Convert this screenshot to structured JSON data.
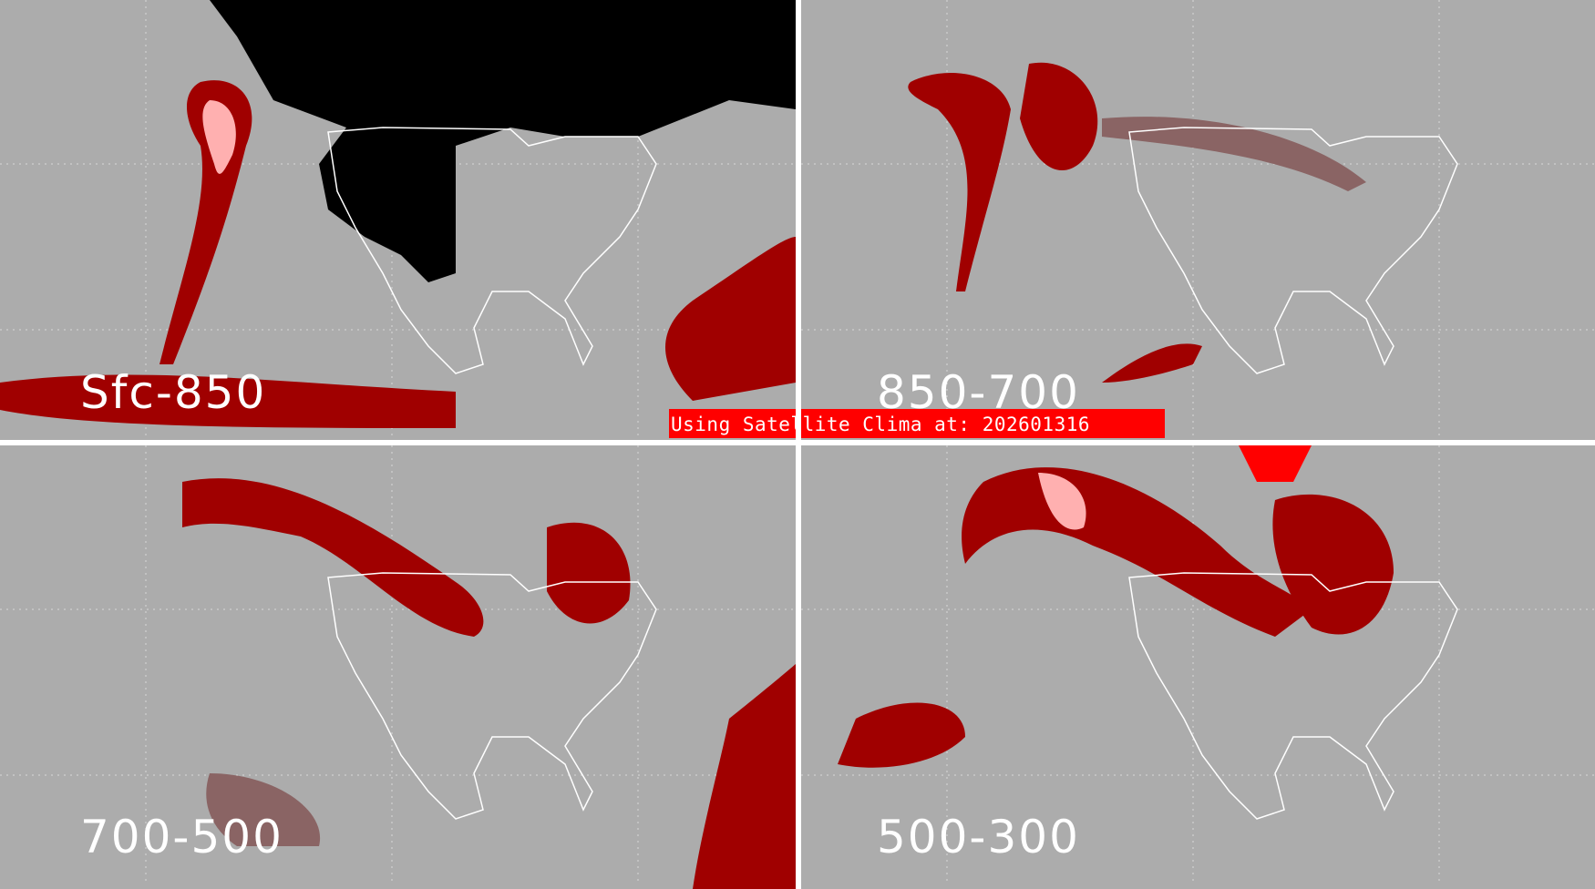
{
  "panels": [
    {
      "id": "tl",
      "label": "Sfc-850"
    },
    {
      "id": "tr",
      "label": "850-700"
    },
    {
      "id": "bl",
      "label": "700-500"
    },
    {
      "id": "br",
      "label": "500-300"
    }
  ],
  "banner": {
    "text": "Using Satellite Clima at: 202601316"
  },
  "colors": {
    "background": "#acacac",
    "dark_red": "#a00000",
    "light_red": "#ffb0b0",
    "brown": "#8a6464",
    "black": "#000000",
    "banner": "#ff0000",
    "coastline": "#ffffff"
  }
}
